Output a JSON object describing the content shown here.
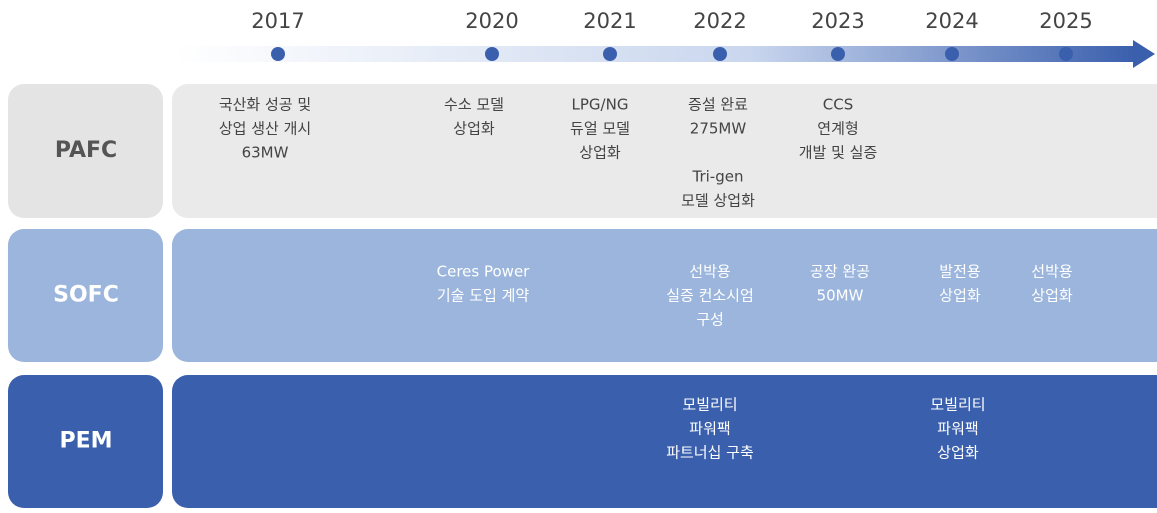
{
  "years": [
    "2017",
    "2020",
    "2021",
    "2022",
    "2023",
    "2024",
    "2025"
  ],
  "rows": [
    {
      "label": "PAFC",
      "items": [
        {
          "lines": [
            "국산화 성공 및",
            "상업 생산 개시",
            "63MW"
          ]
        },
        {
          "lines": [
            "수소 모델",
            "상업화"
          ]
        },
        {
          "lines": [
            "LPG/NG",
            "듀얼 모델",
            "상업화"
          ]
        },
        {
          "lines": [
            "증설 완료",
            "275MW"
          ]
        },
        {
          "lines": [
            "Tri-gen",
            "모델 상업화"
          ]
        },
        {
          "lines": [
            "CCS",
            "연계형",
            "개발 및 실증"
          ]
        }
      ]
    },
    {
      "label": "SOFC",
      "items": [
        {
          "lines": [
            "Ceres Power",
            "기술 도입 계약"
          ]
        },
        {
          "lines": [
            "선박용",
            "실증 컨소시엄",
            "구성"
          ]
        },
        {
          "lines": [
            "공장 완공",
            "50MW"
          ]
        },
        {
          "lines": [
            "발전용",
            "상업화"
          ]
        },
        {
          "lines": [
            "선박용",
            "상업화"
          ]
        }
      ]
    },
    {
      "label": "PEM",
      "items": [
        {
          "lines": [
            "모빌리티",
            "파워팩",
            "파트너십 구축"
          ]
        },
        {
          "lines": [
            "모빌리티",
            "파워팩",
            "상업화"
          ]
        }
      ]
    }
  ]
}
